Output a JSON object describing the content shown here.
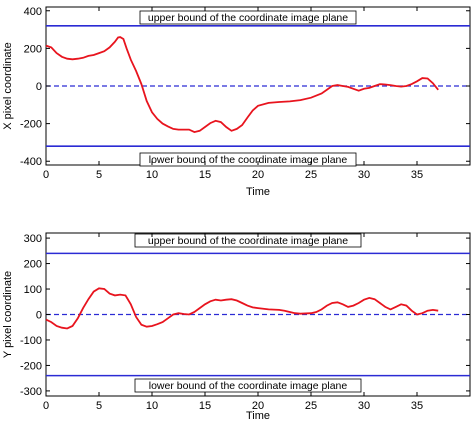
{
  "chart_data": [
    {
      "type": "line",
      "xlabel": "Time",
      "ylabel": "X pixel coordinate",
      "xlim": [
        0,
        40
      ],
      "ylim": [
        -420,
        420
      ],
      "xticks": [
        0,
        5,
        10,
        15,
        20,
        25,
        30,
        35
      ],
      "yticks": [
        -400,
        -200,
        0,
        200,
        400
      ],
      "grid": false,
      "reference_lines": [
        {
          "y": 320,
          "style": "solid",
          "color": "#2b2bd4",
          "label": "upper bound of the coordinate image plane"
        },
        {
          "y": -320,
          "style": "solid",
          "color": "#2b2bd4",
          "label": "lower bound of the coordinate image plane"
        },
        {
          "y": 0,
          "style": "dashed",
          "color": "#2b2bd4",
          "label": ""
        }
      ],
      "series": [
        {
          "color": "#e8141e",
          "points": [
            [
              0,
              215
            ],
            [
              0.5,
              205
            ],
            [
              1,
              175
            ],
            [
              1.5,
              155
            ],
            [
              2,
              145
            ],
            [
              2.5,
              142
            ],
            [
              3,
              145
            ],
            [
              3.5,
              150
            ],
            [
              4,
              160
            ],
            [
              4.5,
              165
            ],
            [
              5,
              175
            ],
            [
              5.5,
              185
            ],
            [
              6,
              205
            ],
            [
              6.5,
              235
            ],
            [
              6.8,
              258
            ],
            [
              7,
              260
            ],
            [
              7.3,
              250
            ],
            [
              7.6,
              200
            ],
            [
              8,
              140
            ],
            [
              8.5,
              80
            ],
            [
              9,
              10
            ],
            [
              9.5,
              -80
            ],
            [
              10,
              -140
            ],
            [
              10.5,
              -175
            ],
            [
              11,
              -200
            ],
            [
              11.5,
              -215
            ],
            [
              12,
              -228
            ],
            [
              12.5,
              -232
            ],
            [
              13,
              -232
            ],
            [
              13.5,
              -232
            ],
            [
              14,
              -245
            ],
            [
              14.5,
              -238
            ],
            [
              15,
              -218
            ],
            [
              15.5,
              -197
            ],
            [
              16,
              -185
            ],
            [
              16.5,
              -192
            ],
            [
              17,
              -218
            ],
            [
              17.5,
              -238
            ],
            [
              18,
              -228
            ],
            [
              18.5,
              -208
            ],
            [
              19,
              -168
            ],
            [
              19.5,
              -130
            ],
            [
              20,
              -105
            ],
            [
              21,
              -90
            ],
            [
              22,
              -85
            ],
            [
              23,
              -82
            ],
            [
              24,
              -75
            ],
            [
              25,
              -62
            ],
            [
              26,
              -40
            ],
            [
              26.5,
              -20
            ],
            [
              27,
              0
            ],
            [
              27.5,
              5
            ],
            [
              28,
              0
            ],
            [
              28.5,
              -5
            ],
            [
              29,
              -15
            ],
            [
              29.5,
              -25
            ],
            [
              30,
              -15
            ],
            [
              30.5,
              -10
            ],
            [
              31,
              0
            ],
            [
              31.5,
              10
            ],
            [
              32,
              8
            ],
            [
              32.5,
              5
            ],
            [
              33,
              0
            ],
            [
              33.5,
              -3
            ],
            [
              34,
              0
            ],
            [
              34.5,
              10
            ],
            [
              35,
              25
            ],
            [
              35.5,
              42
            ],
            [
              36,
              40
            ],
            [
              36.5,
              15
            ],
            [
              37,
              -20
            ]
          ]
        }
      ]
    },
    {
      "type": "line",
      "xlabel": "Time",
      "ylabel": "Y pixel coordinate",
      "xlim": [
        0,
        40
      ],
      "ylim": [
        -320,
        320
      ],
      "xticks": [
        0,
        5,
        10,
        15,
        20,
        25,
        30,
        35
      ],
      "yticks": [
        -300,
        -200,
        -100,
        0,
        100,
        200,
        300
      ],
      "grid": false,
      "reference_lines": [
        {
          "y": 240,
          "style": "solid",
          "color": "#2b2bd4",
          "label": "upper bound of the coordinate image plane"
        },
        {
          "y": -240,
          "style": "solid",
          "color": "#2b2bd4",
          "label": "lower bound of the coordinate image plane"
        },
        {
          "y": 0,
          "style": "dashed",
          "color": "#2b2bd4",
          "label": ""
        }
      ],
      "series": [
        {
          "color": "#e8141e",
          "points": [
            [
              0,
              -20
            ],
            [
              0.5,
              -30
            ],
            [
              1,
              -45
            ],
            [
              1.5,
              -52
            ],
            [
              2,
              -55
            ],
            [
              2.5,
              -45
            ],
            [
              3,
              -15
            ],
            [
              3.5,
              25
            ],
            [
              4,
              60
            ],
            [
              4.5,
              90
            ],
            [
              5,
              103
            ],
            [
              5.5,
              100
            ],
            [
              6,
              82
            ],
            [
              6.5,
              75
            ],
            [
              7,
              78
            ],
            [
              7.5,
              75
            ],
            [
              8,
              40
            ],
            [
              8.5,
              -10
            ],
            [
              9,
              -40
            ],
            [
              9.5,
              -48
            ],
            [
              10,
              -45
            ],
            [
              10.5,
              -38
            ],
            [
              11,
              -30
            ],
            [
              11.5,
              -15
            ],
            [
              12,
              0
            ],
            [
              12.5,
              5
            ],
            [
              13,
              2
            ],
            [
              13.5,
              0
            ],
            [
              14,
              10
            ],
            [
              14.5,
              25
            ],
            [
              15,
              40
            ],
            [
              15.5,
              52
            ],
            [
              16,
              58
            ],
            [
              16.5,
              55
            ],
            [
              17,
              58
            ],
            [
              17.5,
              60
            ],
            [
              18,
              55
            ],
            [
              18.5,
              45
            ],
            [
              19,
              35
            ],
            [
              19.5,
              28
            ],
            [
              20,
              25
            ],
            [
              21,
              20
            ],
            [
              22,
              18
            ],
            [
              22.5,
              15
            ],
            [
              23,
              10
            ],
            [
              23.5,
              5
            ],
            [
              24,
              3
            ],
            [
              25,
              5
            ],
            [
              25.5,
              10
            ],
            [
              26,
              20
            ],
            [
              26.5,
              35
            ],
            [
              27,
              45
            ],
            [
              27.5,
              48
            ],
            [
              28,
              40
            ],
            [
              28.5,
              30
            ],
            [
              29,
              35
            ],
            [
              29.5,
              45
            ],
            [
              30,
              58
            ],
            [
              30.5,
              65
            ],
            [
              31,
              60
            ],
            [
              31.5,
              45
            ],
            [
              32,
              30
            ],
            [
              32.5,
              20
            ],
            [
              33,
              30
            ],
            [
              33.5,
              40
            ],
            [
              34,
              35
            ],
            [
              34.5,
              15
            ],
            [
              35,
              0
            ],
            [
              35.5,
              5
            ],
            [
              36,
              15
            ],
            [
              36.5,
              18
            ],
            [
              37,
              15
            ]
          ]
        }
      ]
    }
  ]
}
